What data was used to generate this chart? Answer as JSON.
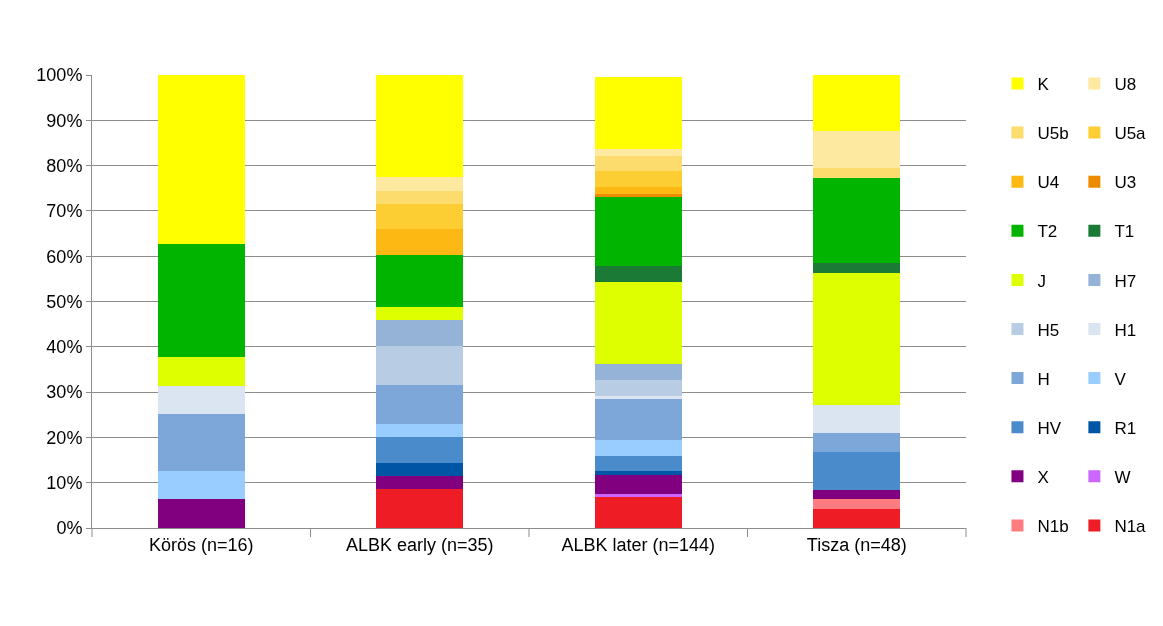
{
  "chart_data": {
    "type": "bar",
    "stacked": true,
    "categories": [
      "Körös (n=16)",
      "ALBK early (n=35)",
      "ALBK later (n=144)",
      "Tisza (n=48)"
    ],
    "ylim": [
      0,
      100
    ],
    "yticks": [
      {
        "value": 0,
        "label": "0%"
      },
      {
        "value": 10,
        "label": "10%"
      },
      {
        "value": 20,
        "label": "20%"
      },
      {
        "value": 30,
        "label": "30%"
      },
      {
        "value": 40,
        "label": "40%"
      },
      {
        "value": 50,
        "label": "50%"
      },
      {
        "value": 60,
        "label": "60%"
      },
      {
        "value": 70,
        "label": "70%"
      },
      {
        "value": 80,
        "label": "80%"
      },
      {
        "value": 90,
        "label": "90%"
      },
      {
        "value": 100,
        "label": "100%"
      }
    ],
    "grid": "y",
    "legend": "right",
    "series": [
      {
        "name": "N1a",
        "color": "#ee1c24",
        "values": [
          null,
          8.6,
          6.9,
          4.2
        ]
      },
      {
        "name": "N1b",
        "color": "#ff7c80",
        "values": [
          null,
          null,
          null,
          2.1
        ]
      },
      {
        "name": "W",
        "color": "#cc66ff",
        "values": [
          null,
          null,
          0.7,
          null
        ]
      },
      {
        "name": "X",
        "color": "#800080",
        "values": [
          6.3,
          2.9,
          4.2,
          2.1
        ]
      },
      {
        "name": "R1",
        "color": "#0055a5",
        "values": [
          null,
          2.9,
          0.7,
          null
        ]
      },
      {
        "name": "HV",
        "color": "#4a8bcb",
        "values": [
          null,
          5.7,
          3.5,
          8.3
        ]
      },
      {
        "name": "V",
        "color": "#99ccff",
        "values": [
          6.3,
          2.9,
          3.5,
          null
        ]
      },
      {
        "name": "H",
        "color": "#7da7d9",
        "values": [
          12.5,
          8.6,
          9,
          4.2
        ]
      },
      {
        "name": "H1",
        "color": "#dbe5f1",
        "values": [
          6.3,
          null,
          0.7,
          6.3
        ]
      },
      {
        "name": "H5",
        "color": "#b8cce4",
        "values": [
          null,
          8.6,
          3.5,
          null
        ]
      },
      {
        "name": "H7",
        "color": "#95b3d7",
        "values": [
          null,
          5.7,
          3.5,
          null
        ]
      },
      {
        "name": "J",
        "color": "#ddff00",
        "values": [
          6.3,
          2.9,
          18.1,
          29.2
        ]
      },
      {
        "name": "T1",
        "color": "#1b7a36",
        "values": [
          null,
          null,
          3.5,
          2.1
        ]
      },
      {
        "name": "T2",
        "color": "#00b400",
        "values": [
          25,
          11.4,
          15.3,
          18.8
        ]
      },
      {
        "name": "U3",
        "color": "#ed8c00",
        "values": [
          null,
          null,
          0.7,
          null
        ]
      },
      {
        "name": "U4",
        "color": "#fdb813",
        "values": [
          null,
          5.7,
          1.4,
          null
        ]
      },
      {
        "name": "U5a",
        "color": "#fcce34",
        "values": [
          null,
          5.7,
          3.5,
          null
        ]
      },
      {
        "name": "U5b",
        "color": "#fcdc6c",
        "values": [
          null,
          2.9,
          3.5,
          2.1
        ]
      },
      {
        "name": "U8",
        "color": "#fde9a0",
        "values": [
          null,
          2.9,
          1.4,
          8.3
        ]
      },
      {
        "name": "K",
        "color": "#ffff00",
        "values": [
          37.5,
          22.9,
          16,
          12.5
        ]
      }
    ]
  }
}
